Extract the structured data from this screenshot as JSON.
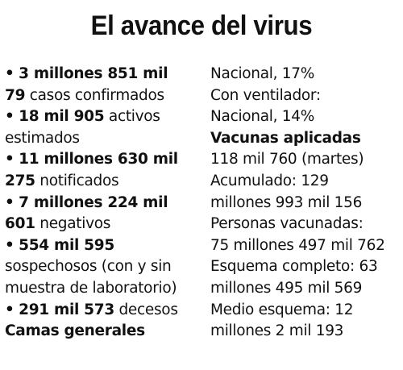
{
  "title": "El avance del virus",
  "left": [
    {
      "line1_bold": "3 millones 851 mil",
      "line2_bold": "79",
      "line2_rest": " casos confirmados"
    },
    {
      "bold": "18 mil 905",
      "rest": " activos",
      "line2": "estimados"
    },
    {
      "line1_bold": "11 millones 630 mil",
      "line2_bold": "275",
      "line2_rest": " notificados"
    },
    {
      "line1_bold": "7 millones 224 mil",
      "line2_bold": "601",
      "line2_rest": " negativos"
    },
    {
      "bold": "554 mil 595",
      "line2": "sospechosos (con y sin",
      "line3": "muestra de laboratorio)"
    },
    {
      "bold": "291 mil 573",
      "rest": " decesos"
    }
  ],
  "left_heading": "Camas generales",
  "right": [
    "Nacional, 17%",
    "Con ventilador:",
    "Nacional, 14%"
  ],
  "right_heading": "Vacunas aplicadas",
  "right2": [
    "118 mil 760 (martes)",
    "Acumulado: 129",
    "millones 993 mil 156",
    "Personas vacunadas:",
    "75 millones 497 mil 762",
    "Esquema completo: 63",
    "millones 495 mil 569",
    "Medio esquema: 12",
    "millones 2 mil 193"
  ],
  "bullet_char": "•"
}
